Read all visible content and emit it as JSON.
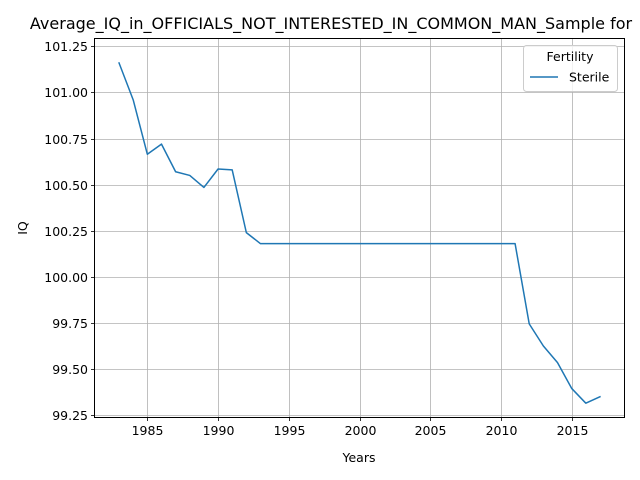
{
  "chart_data": {
    "type": "line",
    "title": "Average_IQ_in_OFFICIALS_NOT_INTERESTED_IN_COMMON_MAN_Sample for",
    "xlabel": "Years",
    "ylabel": "IQ",
    "xlim": [
      1981.3,
      2018.7
    ],
    "ylim": [
      99.24,
      101.29
    ],
    "x_ticks": [
      1985,
      1990,
      1995,
      2000,
      2005,
      2010,
      2015
    ],
    "y_ticks": [
      99.25,
      99.5,
      99.75,
      100.0,
      100.25,
      100.5,
      100.75,
      101.0,
      101.25
    ],
    "y_tick_labels": [
      "99.25",
      "99.50",
      "99.75",
      "100.00",
      "100.25",
      "100.50",
      "100.75",
      "101.00",
      "101.25"
    ],
    "grid": true,
    "legend": {
      "title": "Fertility",
      "position": "top-right"
    },
    "series": [
      {
        "name": "Sterile",
        "color": "#1f77b4",
        "x": [
          1983,
          1984,
          1985,
          1986,
          1987,
          1988,
          1989,
          1990,
          1991,
          1992,
          1993,
          1994,
          1995,
          1996,
          1997,
          1998,
          1999,
          2000,
          2001,
          2002,
          2003,
          2004,
          2005,
          2006,
          2007,
          2008,
          2009,
          2010,
          2011,
          2012,
          2013,
          2014,
          2015,
          2016,
          2017
        ],
        "values": [
          101.16,
          100.96,
          100.665,
          100.72,
          100.57,
          100.55,
          100.485,
          100.585,
          100.58,
          100.24,
          100.18,
          100.18,
          100.18,
          100.18,
          100.18,
          100.18,
          100.18,
          100.18,
          100.18,
          100.18,
          100.18,
          100.18,
          100.18,
          100.18,
          100.18,
          100.18,
          100.18,
          100.18,
          100.18,
          99.745,
          99.625,
          99.535,
          99.395,
          99.315,
          99.35
        ]
      }
    ]
  }
}
